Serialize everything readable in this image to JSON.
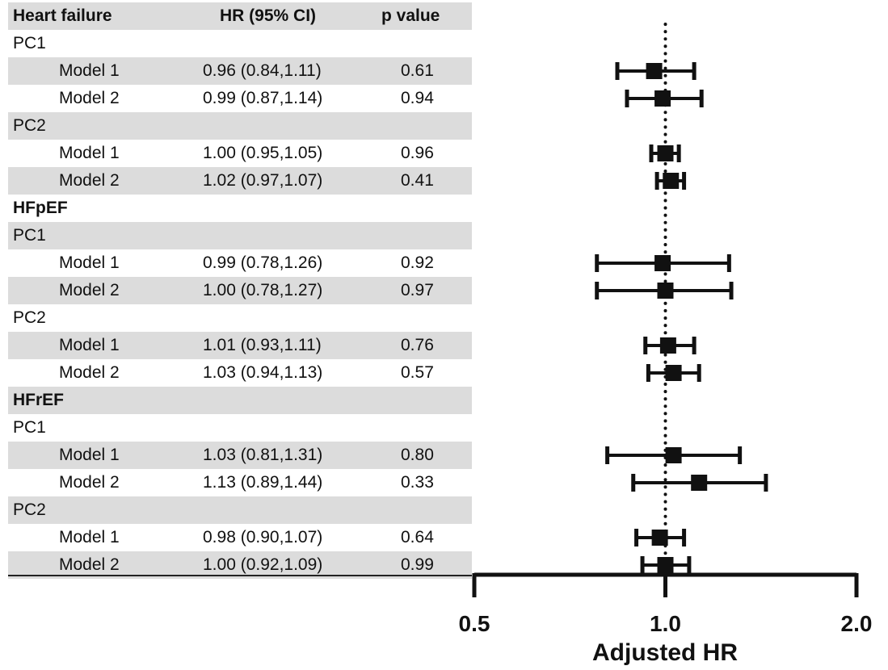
{
  "table": {
    "headers": {
      "label": "Heart failure",
      "hr": "HR (95% CI)",
      "p": "p value"
    },
    "rows": [
      {
        "label": "PC1",
        "kind": "group"
      },
      {
        "label": "Model 1",
        "kind": "model",
        "hr": "0.96 (0.84,1.11)",
        "p": "0.61"
      },
      {
        "label": "Model 2",
        "kind": "model",
        "hr": "0.99 (0.87,1.14)",
        "p": "0.94"
      },
      {
        "label": "PC2",
        "kind": "group"
      },
      {
        "label": "Model 1",
        "kind": "model",
        "hr": "1.00 (0.95,1.05)",
        "p": "0.96"
      },
      {
        "label": "Model 2",
        "kind": "model",
        "hr": "1.02 (0.97,1.07)",
        "p": "0.41"
      },
      {
        "label": "HFpEF",
        "kind": "section"
      },
      {
        "label": "PC1",
        "kind": "group"
      },
      {
        "label": "Model 1",
        "kind": "model",
        "hr": "0.99 (0.78,1.26)",
        "p": "0.92"
      },
      {
        "label": "Model 2",
        "kind": "model",
        "hr": "1.00 (0.78,1.27)",
        "p": "0.97"
      },
      {
        "label": "PC2",
        "kind": "group"
      },
      {
        "label": "Model 1",
        "kind": "model",
        "hr": "1.01 (0.93,1.11)",
        "p": "0.76"
      },
      {
        "label": "Model 2",
        "kind": "model",
        "hr": "1.03 (0.94,1.13)",
        "p": "0.57"
      },
      {
        "label": "HFrEF",
        "kind": "section"
      },
      {
        "label": "PC1",
        "kind": "group"
      },
      {
        "label": "Model 1",
        "kind": "model",
        "hr": "1.03 (0.81,1.31)",
        "p": "0.80"
      },
      {
        "label": "Model 2",
        "kind": "model",
        "hr": "1.13 (0.89,1.44)",
        "p": "0.33"
      },
      {
        "label": "PC2",
        "kind": "group"
      },
      {
        "label": "Model 1",
        "kind": "model",
        "hr": "0.98 (0.90,1.07)",
        "p": "0.64"
      },
      {
        "label": "Model 2",
        "kind": "model",
        "hr": "1.00 (0.92,1.09)",
        "p": "0.99"
      }
    ]
  },
  "chart_data": {
    "type": "scatter",
    "xlabel": "Adjusted HR",
    "x_scale": "log",
    "xlim": [
      0.5,
      2.0
    ],
    "xticks": [
      0.5,
      1.0,
      2.0
    ],
    "xtick_labels": [
      "0.5",
      "1.0",
      "2.0"
    ],
    "reference_line": 1.0,
    "points": [
      {
        "row": 1,
        "hr": 0.96,
        "lo": 0.84,
        "hi": 1.11
      },
      {
        "row": 2,
        "hr": 0.99,
        "lo": 0.87,
        "hi": 1.14
      },
      {
        "row": 4,
        "hr": 1.0,
        "lo": 0.95,
        "hi": 1.05
      },
      {
        "row": 5,
        "hr": 1.02,
        "lo": 0.97,
        "hi": 1.07
      },
      {
        "row": 8,
        "hr": 0.99,
        "lo": 0.78,
        "hi": 1.26
      },
      {
        "row": 9,
        "hr": 1.0,
        "lo": 0.78,
        "hi": 1.27
      },
      {
        "row": 11,
        "hr": 1.01,
        "lo": 0.93,
        "hi": 1.11
      },
      {
        "row": 12,
        "hr": 1.03,
        "lo": 0.94,
        "hi": 1.13
      },
      {
        "row": 15,
        "hr": 1.03,
        "lo": 0.81,
        "hi": 1.31
      },
      {
        "row": 16,
        "hr": 1.13,
        "lo": 0.89,
        "hi": 1.44
      },
      {
        "row": 18,
        "hr": 0.98,
        "lo": 0.9,
        "hi": 1.07
      },
      {
        "row": 19,
        "hr": 1.0,
        "lo": 0.92,
        "hi": 1.09
      }
    ],
    "color": "#111111"
  }
}
